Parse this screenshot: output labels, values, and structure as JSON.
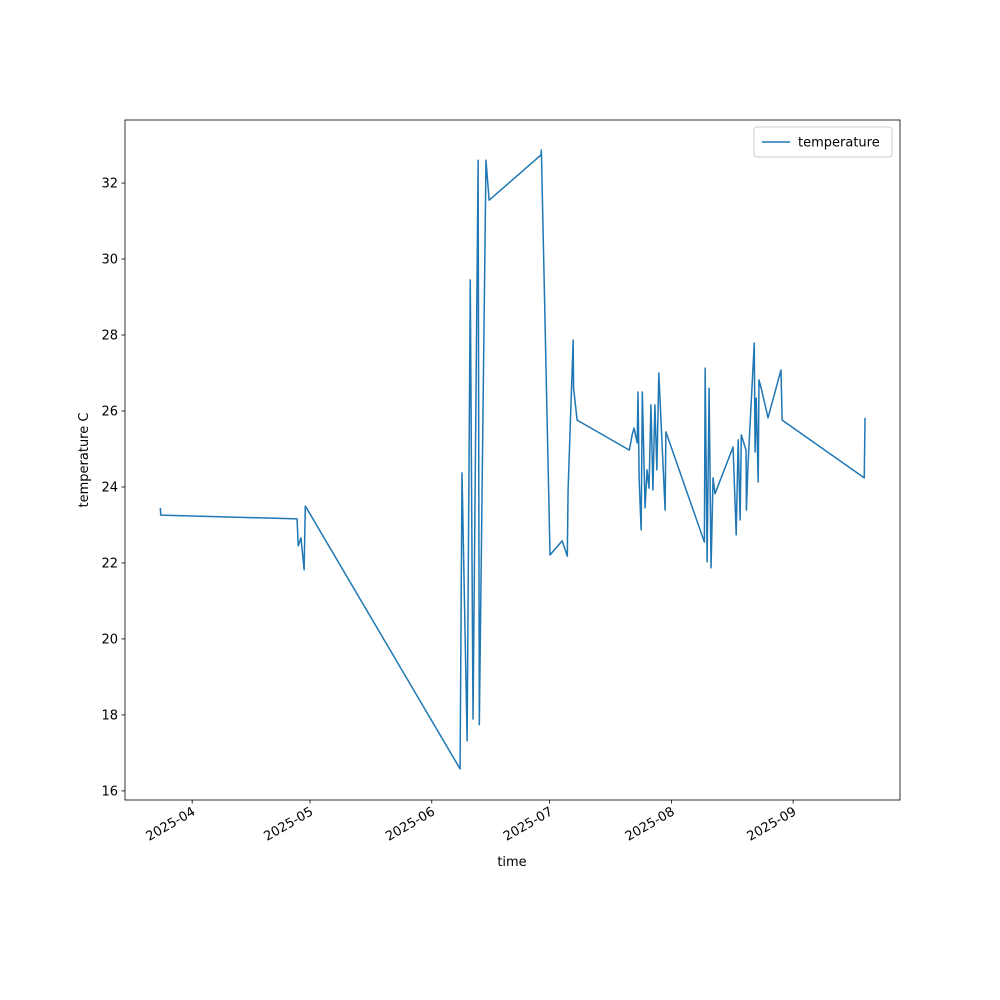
{
  "chart_data": {
    "type": "line",
    "xlabel": "time",
    "ylabel": "temperature C",
    "x": [
      20170.9,
      20171.0,
      20205.7,
      20206.0,
      20206.7,
      20207.5,
      20207.8,
      20247.2,
      20247.7,
      20249.0,
      20249.8,
      20250.5,
      20251.8,
      20252.1,
      20253.8,
      20254.6,
      20267.8,
      20267.9,
      20270.1,
      20273.2,
      20274.5,
      20274.7,
      20276.0,
      20276.1,
      20277.0,
      20290.3,
      20291.0,
      20291.5,
      20292.3,
      20292.5,
      20292.8,
      20293.3,
      20293.6,
      20294.3,
      20294.8,
      20295.3,
      20295.8,
      20296.3,
      20296.8,
      20297.3,
      20297.8,
      20299.4,
      20299.6,
      20309.4,
      20309.6,
      20310.1,
      20310.6,
      20311.1,
      20311.6,
      20312.1,
      20316.7,
      20317.5,
      20318.0,
      20318.5,
      20318.8,
      20320.0,
      20320.1,
      20320.5,
      20322.1,
      20322.3,
      20322.6,
      20323.1,
      20323.3,
      20324.1,
      20325.6,
      20328.9,
      20329.2,
      20350.1,
      20350.3
    ],
    "series": [
      {
        "name": "temperature",
        "color": "#1f77b4",
        "values": [
          23.45,
          23.26,
          23.16,
          22.45,
          22.66,
          21.82,
          23.5,
          16.58,
          24.37,
          17.32,
          29.45,
          17.89,
          32.6,
          17.74,
          32.6,
          31.55,
          32.74,
          32.87,
          22.21,
          22.58,
          22.18,
          23.92,
          27.87,
          26.6,
          25.76,
          24.97,
          25.37,
          25.55,
          25.16,
          26.5,
          24.18,
          22.87,
          26.5,
          23.45,
          24.45,
          23.97,
          26.16,
          23.92,
          26.16,
          24.45,
          27.0,
          23.39,
          25.45,
          22.55,
          27.13,
          22.03,
          26.6,
          21.87,
          24.24,
          23.82,
          25.05,
          22.74,
          25.24,
          23.13,
          25.37,
          24.97,
          23.39,
          24.58,
          27.79,
          24.92,
          26.34,
          24.13,
          26.82,
          26.5,
          25.82,
          27.08,
          25.76,
          24.24,
          25.82
        ]
      }
    ],
    "xlim": [
      20161.9,
      20359.2
    ],
    "xticks": [
      {
        "value": 20179,
        "label": "2025-04"
      },
      {
        "value": 20209,
        "label": "2025-05"
      },
      {
        "value": 20240,
        "label": "2025-06"
      },
      {
        "value": 20270,
        "label": "2025-07"
      },
      {
        "value": 20301,
        "label": "2025-08"
      },
      {
        "value": 20332,
        "label": "2025-09"
      }
    ],
    "ylim": [
      15.76,
      33.66
    ],
    "yticks": [
      16,
      18,
      20,
      22,
      24,
      26,
      28,
      30,
      32
    ],
    "legend": "upper right"
  }
}
